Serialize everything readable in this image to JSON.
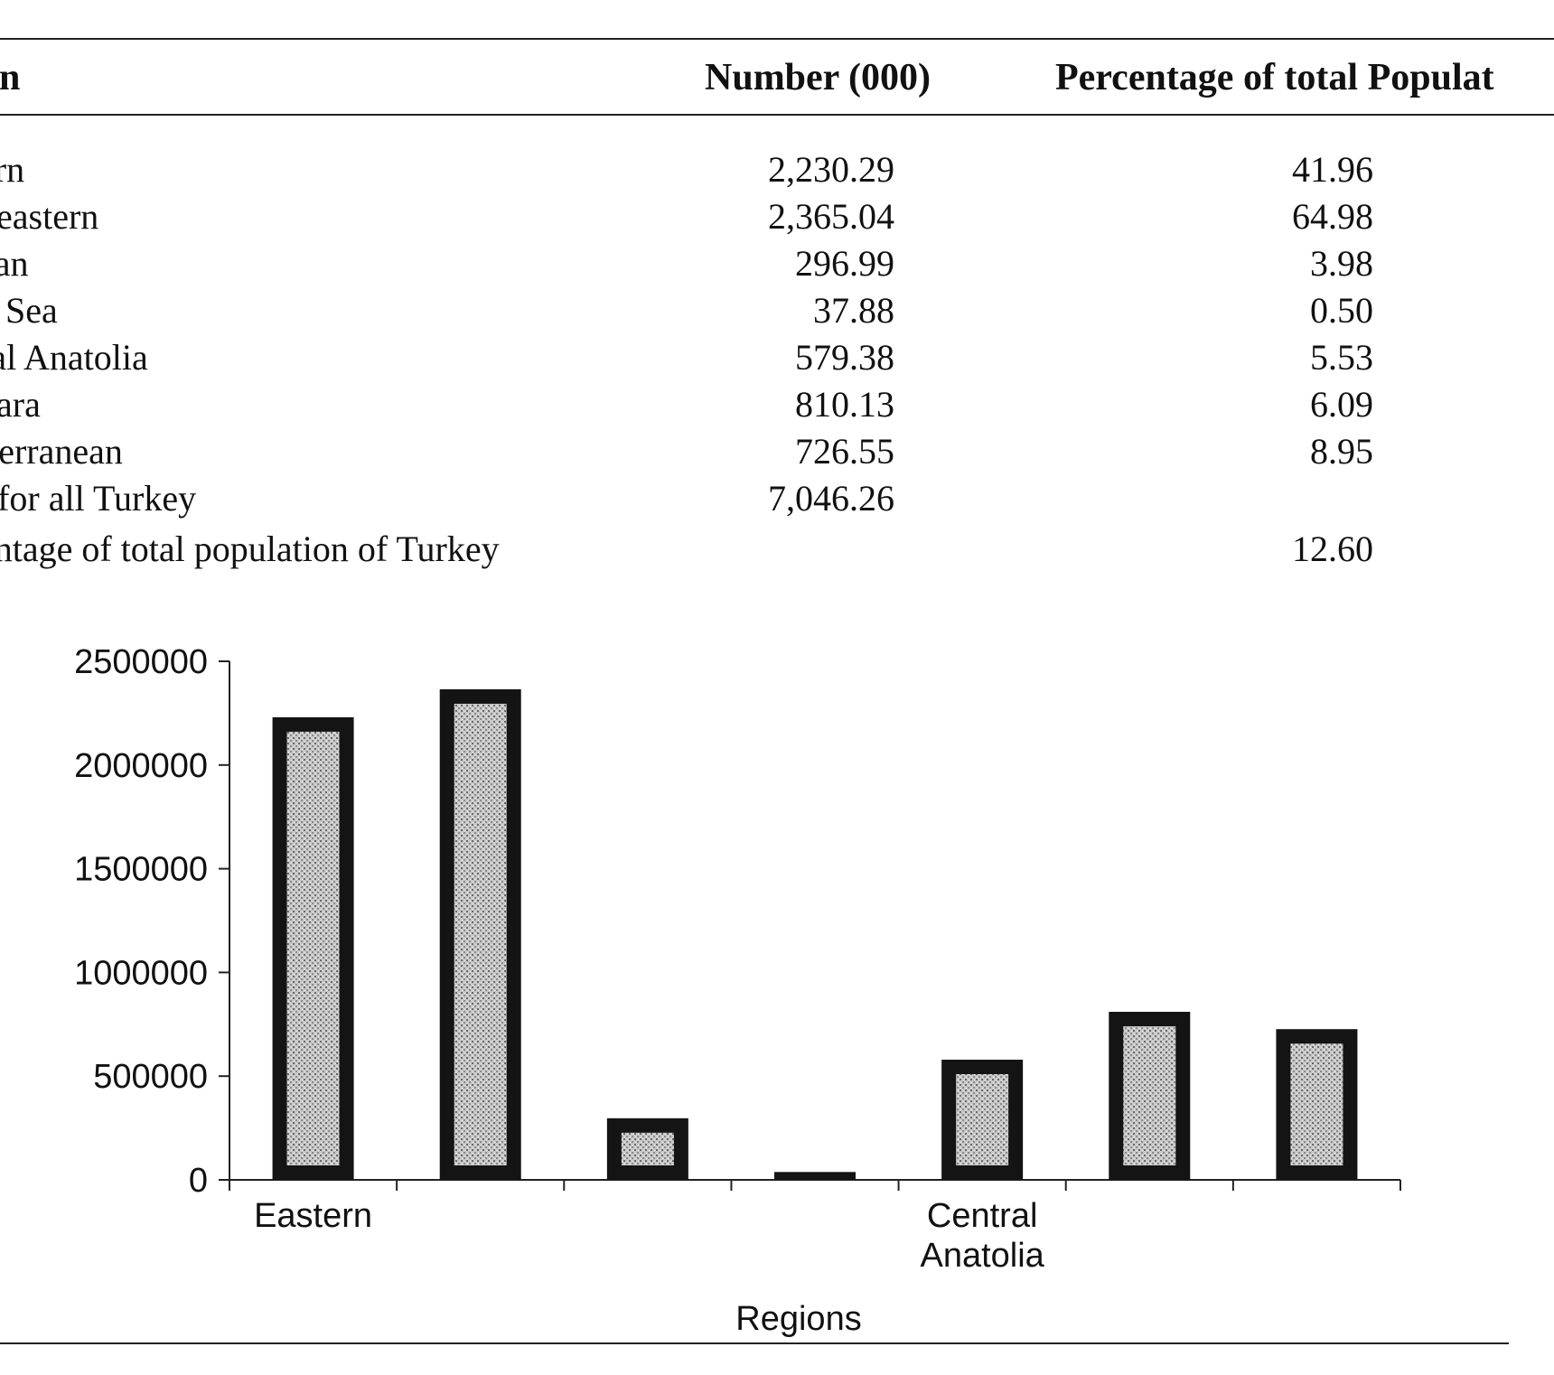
{
  "table": {
    "headers": {
      "region": "on",
      "number": "Number (000)",
      "percentage": "Percentage of total Populat"
    },
    "rows": [
      {
        "region": "ern",
        "number": "2,230.29",
        "percentage": "41.96"
      },
      {
        "region": "heastern",
        "number": "2,365.04",
        "percentage": "64.98"
      },
      {
        "region": "ean",
        "number": "296.99",
        "percentage": "3.98"
      },
      {
        "region": "k Sea",
        "number": "37.88",
        "percentage": "0.50"
      },
      {
        "region": "ral Anatolia",
        "number": "579.38",
        "percentage": "5.53"
      },
      {
        "region": "nara",
        "number": "810.13",
        "percentage": "6.09"
      },
      {
        "region": "iterranean",
        "number": "726.55",
        "percentage": "8.95"
      },
      {
        "region": "l for all Turkey",
        "number": "7,046.26",
        "percentage": ""
      },
      {
        "region": "entage of total population of Turkey",
        "number": "",
        "percentage": "12.60"
      }
    ]
  },
  "chart_data": {
    "type": "bar",
    "categories": [
      "Eastern",
      "",
      "",
      "",
      "Central Anatolia",
      "",
      ""
    ],
    "values": [
      2230290,
      2365040,
      296990,
      37880,
      579380,
      810130,
      726550
    ],
    "ylim": [
      0,
      2500000
    ],
    "yticks": [
      "0",
      "500000",
      "1000000",
      "1500000",
      "2000000",
      "2500000"
    ],
    "xlabel": "Regions",
    "ylabel": "",
    "grid": false,
    "colors": {
      "bar_frame": "#141414",
      "bar_fill": "#bdbdbd"
    }
  }
}
